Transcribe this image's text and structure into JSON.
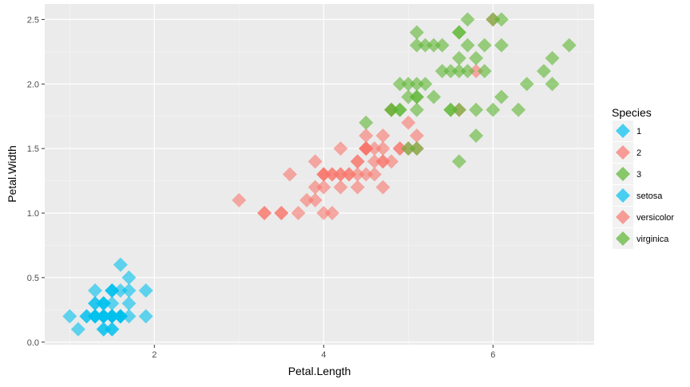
{
  "chart_data": {
    "type": "scatter",
    "title": "",
    "xlabel": "Petal.Length",
    "ylabel": "Petal.Width",
    "xlim": [
      0.705,
      7.195
    ],
    "ylim": [
      -0.02,
      2.62
    ],
    "x_ticks": [
      2,
      4,
      6
    ],
    "y_ticks": [
      0.0,
      0.5,
      1.0,
      1.5,
      2.0,
      2.5
    ],
    "x_tick_labels": [
      "2",
      "4",
      "6"
    ],
    "y_tick_labels": [
      "0.0",
      "0.5",
      "1.0",
      "1.5",
      "2.0",
      "2.5"
    ],
    "grid": true,
    "legend": {
      "title": "Species",
      "placement": "right",
      "entries": [
        {
          "label": "1",
          "color": "#00BFEF"
        },
        {
          "label": "2",
          "color": "#F8766D"
        },
        {
          "label": "3",
          "color": "#5BB531"
        },
        {
          "label": "setosa",
          "color": "#00BFEF"
        },
        {
          "label": "versicolor",
          "color": "#F8766D"
        },
        {
          "label": "virginica",
          "color": "#5BB531"
        }
      ]
    },
    "colors": {
      "panel_bg": "#EBEBEB",
      "grid": "#FFFFFF",
      "axis_text": "#4D4D4D"
    },
    "series": [
      {
        "name": "setosa",
        "color": "#00BFEF",
        "points": [
          [
            1.4,
            0.2
          ],
          [
            1.4,
            0.2
          ],
          [
            1.3,
            0.2
          ],
          [
            1.5,
            0.2
          ],
          [
            1.4,
            0.2
          ],
          [
            1.7,
            0.4
          ],
          [
            1.4,
            0.3
          ],
          [
            1.5,
            0.2
          ],
          [
            1.4,
            0.2
          ],
          [
            1.5,
            0.1
          ],
          [
            1.5,
            0.2
          ],
          [
            1.6,
            0.2
          ],
          [
            1.4,
            0.1
          ],
          [
            1.1,
            0.1
          ],
          [
            1.2,
            0.2
          ],
          [
            1.5,
            0.4
          ],
          [
            1.3,
            0.4
          ],
          [
            1.4,
            0.3
          ],
          [
            1.7,
            0.3
          ],
          [
            1.5,
            0.3
          ],
          [
            1.7,
            0.2
          ],
          [
            1.5,
            0.4
          ],
          [
            1.0,
            0.2
          ],
          [
            1.7,
            0.5
          ],
          [
            1.9,
            0.2
          ],
          [
            1.6,
            0.2
          ],
          [
            1.6,
            0.4
          ],
          [
            1.5,
            0.2
          ],
          [
            1.4,
            0.2
          ],
          [
            1.6,
            0.2
          ],
          [
            1.6,
            0.2
          ],
          [
            1.5,
            0.4
          ],
          [
            1.5,
            0.1
          ],
          [
            1.4,
            0.2
          ],
          [
            1.5,
            0.2
          ],
          [
            1.2,
            0.2
          ],
          [
            1.3,
            0.2
          ],
          [
            1.4,
            0.1
          ],
          [
            1.3,
            0.2
          ],
          [
            1.5,
            0.2
          ],
          [
            1.3,
            0.3
          ],
          [
            1.3,
            0.3
          ],
          [
            1.3,
            0.2
          ],
          [
            1.6,
            0.6
          ],
          [
            1.9,
            0.4
          ],
          [
            1.4,
            0.3
          ],
          [
            1.6,
            0.2
          ],
          [
            1.4,
            0.2
          ],
          [
            1.5,
            0.2
          ],
          [
            1.4,
            0.2
          ]
        ]
      },
      {
        "name": "versicolor",
        "color": "#F8766D",
        "points": [
          [
            4.7,
            1.4
          ],
          [
            4.5,
            1.5
          ],
          [
            4.9,
            1.5
          ],
          [
            4.0,
            1.3
          ],
          [
            4.6,
            1.5
          ],
          [
            4.5,
            1.3
          ],
          [
            4.7,
            1.6
          ],
          [
            3.3,
            1.0
          ],
          [
            4.6,
            1.3
          ],
          [
            3.9,
            1.4
          ],
          [
            3.5,
            1.0
          ],
          [
            4.2,
            1.5
          ],
          [
            4.0,
            1.0
          ],
          [
            4.7,
            1.4
          ],
          [
            3.6,
            1.3
          ],
          [
            4.4,
            1.4
          ],
          [
            4.5,
            1.5
          ],
          [
            4.1,
            1.0
          ],
          [
            4.5,
            1.5
          ],
          [
            3.9,
            1.1
          ],
          [
            4.8,
            1.8
          ],
          [
            4.0,
            1.3
          ],
          [
            4.9,
            1.5
          ],
          [
            4.7,
            1.2
          ],
          [
            4.3,
            1.3
          ],
          [
            4.4,
            1.4
          ],
          [
            4.8,
            1.4
          ],
          [
            5.0,
            1.7
          ],
          [
            4.5,
            1.5
          ],
          [
            3.5,
            1.0
          ],
          [
            3.8,
            1.1
          ],
          [
            3.7,
            1.0
          ],
          [
            3.9,
            1.2
          ],
          [
            5.1,
            1.6
          ],
          [
            4.5,
            1.5
          ],
          [
            4.5,
            1.6
          ],
          [
            4.7,
            1.5
          ],
          [
            4.4,
            1.3
          ],
          [
            4.1,
            1.3
          ],
          [
            4.0,
            1.3
          ],
          [
            4.4,
            1.2
          ],
          [
            4.6,
            1.4
          ],
          [
            4.0,
            1.2
          ],
          [
            3.3,
            1.0
          ],
          [
            4.2,
            1.3
          ],
          [
            4.2,
            1.2
          ],
          [
            4.2,
            1.3
          ],
          [
            4.3,
            1.3
          ],
          [
            3.0,
            1.1
          ],
          [
            4.1,
            1.3
          ],
          [
            5.6,
            1.8
          ],
          [
            6.0,
            2.5
          ],
          [
            5.8,
            2.1
          ],
          [
            5.1,
            1.5
          ],
          [
            5.0,
            1.5
          ]
        ]
      },
      {
        "name": "virginica",
        "color": "#5BB531",
        "points": [
          [
            6.0,
            2.5
          ],
          [
            5.1,
            1.9
          ],
          [
            5.9,
            2.1
          ],
          [
            5.6,
            1.8
          ],
          [
            5.8,
            2.2
          ],
          [
            6.6,
            2.1
          ],
          [
            4.5,
            1.7
          ],
          [
            6.3,
            1.8
          ],
          [
            5.8,
            1.8
          ],
          [
            6.1,
            2.5
          ],
          [
            5.1,
            2.0
          ],
          [
            5.3,
            1.9
          ],
          [
            5.5,
            2.1
          ],
          [
            5.0,
            2.0
          ],
          [
            5.1,
            2.4
          ],
          [
            5.3,
            2.3
          ],
          [
            5.5,
            1.8
          ],
          [
            6.7,
            2.2
          ],
          [
            6.9,
            2.3
          ],
          [
            5.0,
            1.5
          ],
          [
            5.7,
            2.3
          ],
          [
            4.9,
            2.0
          ],
          [
            6.7,
            2.0
          ],
          [
            4.9,
            1.8
          ],
          [
            5.7,
            2.1
          ],
          [
            6.0,
            1.8
          ],
          [
            4.8,
            1.8
          ],
          [
            4.9,
            1.8
          ],
          [
            5.6,
            2.1
          ],
          [
            5.8,
            1.6
          ],
          [
            6.1,
            1.9
          ],
          [
            6.4,
            2.0
          ],
          [
            5.6,
            2.2
          ],
          [
            5.1,
            1.5
          ],
          [
            5.6,
            1.4
          ],
          [
            6.1,
            2.3
          ],
          [
            5.6,
            2.4
          ],
          [
            5.5,
            1.8
          ],
          [
            4.8,
            1.8
          ],
          [
            5.4,
            2.1
          ],
          [
            5.6,
            2.4
          ],
          [
            5.1,
            2.3
          ],
          [
            5.1,
            1.9
          ],
          [
            5.9,
            2.3
          ],
          [
            5.7,
            2.5
          ],
          [
            5.2,
            2.3
          ],
          [
            5.0,
            1.9
          ],
          [
            5.2,
            2.0
          ],
          [
            5.4,
            2.3
          ],
          [
            5.1,
            1.8
          ]
        ]
      }
    ]
  }
}
